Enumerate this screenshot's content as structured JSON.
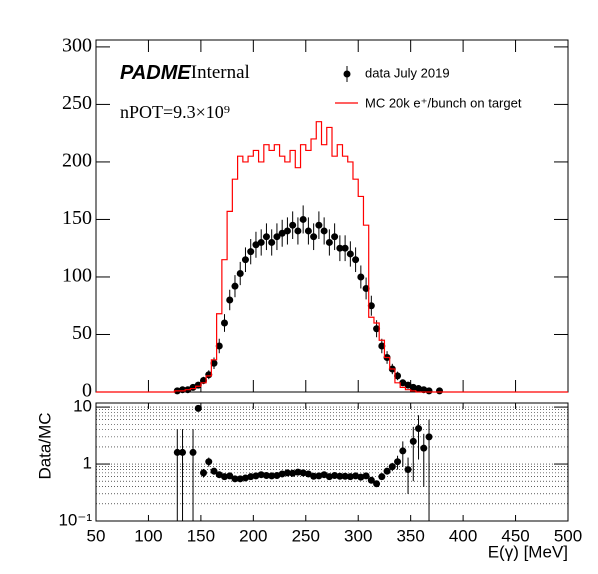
{
  "chart_data": [
    {
      "type": "histogram",
      "label_brand": "PADME",
      "label_status": "Internal",
      "annotation": "nPOT=9.3×10⁹",
      "xlim": [
        50,
        500
      ],
      "ylim": [
        0,
        306
      ],
      "yticks": [
        0,
        50,
        100,
        150,
        200,
        250,
        300
      ],
      "xticks": [
        50,
        100,
        150,
        200,
        250,
        300,
        350,
        400,
        450,
        500
      ],
      "series": [
        {
          "name": "data July 2019",
          "color": "#000000",
          "kind": "points",
          "x": [
            127.5,
            132.5,
            137.5,
            142.5,
            147.5,
            152.5,
            157.5,
            162.5,
            167.5,
            172.5,
            177.5,
            182.5,
            187.5,
            192.5,
            197.5,
            202.5,
            207.5,
            212.5,
            217.5,
            222.5,
            227.5,
            232.5,
            237.5,
            242.5,
            247.5,
            252.5,
            257.5,
            262.5,
            267.5,
            272.5,
            277.5,
            282.5,
            287.5,
            292.5,
            297.5,
            302.5,
            307.5,
            312.5,
            317.5,
            322.5,
            327.5,
            332.5,
            337.5,
            342.5,
            347.5,
            352.5,
            357.5,
            362.5,
            367.5,
            377.5
          ],
          "values": [
            1,
            2,
            2,
            4,
            6,
            10,
            15,
            25,
            40,
            60,
            80,
            92,
            103,
            115,
            122,
            128,
            130,
            135,
            130,
            135,
            138,
            140,
            145,
            140,
            150,
            140,
            135,
            145,
            140,
            130,
            135,
            125,
            125,
            120,
            115,
            100,
            90,
            75,
            55,
            40,
            30,
            20,
            14,
            8,
            6,
            4,
            3,
            2,
            1,
            1
          ],
          "errors": [
            1,
            1.4,
            1.4,
            2,
            2.4,
            3.2,
            3.9,
            5,
            6.3,
            7.7,
            8.9,
            9.6,
            10.1,
            10.7,
            11,
            11.3,
            11.4,
            11.6,
            11.4,
            11.6,
            11.7,
            11.8,
            12,
            11.8,
            12.2,
            11.8,
            11.6,
            12,
            11.8,
            11.4,
            11.6,
            11.2,
            11.2,
            11,
            10.7,
            10,
            9.5,
            8.7,
            7.4,
            6.3,
            5.5,
            4.5,
            3.7,
            2.8,
            2.4,
            2,
            1.7,
            1.4,
            1,
            1
          ]
        },
        {
          "name": "MC 20k e⁺/bunch on target",
          "color": "#ff0000",
          "kind": "step",
          "bins": [
            125,
            130,
            135,
            140,
            145,
            150,
            155,
            160,
            165,
            170,
            175,
            180,
            185,
            190,
            195,
            200,
            205,
            210,
            215,
            220,
            225,
            230,
            235,
            240,
            245,
            250,
            255,
            260,
            265,
            270,
            275,
            280,
            285,
            290,
            295,
            300,
            305,
            310,
            315,
            320,
            325,
            330,
            335,
            340,
            345,
            350,
            355,
            360
          ],
          "values": [
            1,
            1,
            2,
            3,
            5,
            8,
            14,
            28,
            68,
            115,
            157,
            185,
            205,
            200,
            205,
            210,
            200,
            215,
            210,
            215,
            205,
            200,
            210,
            195,
            215,
            210,
            220,
            235,
            215,
            230,
            205,
            215,
            205,
            200,
            185,
            170,
            145,
            65,
            60,
            45,
            30,
            20,
            8,
            4,
            2,
            1,
            0
          ]
        }
      ]
    },
    {
      "type": "scatter",
      "log_y": true,
      "grid": true,
      "y_label": "Data/MC",
      "x_label": "E(γ) [MeV]",
      "xlim": [
        50,
        500
      ],
      "ylim": [
        0.1,
        11.8
      ],
      "xticks": [
        50,
        100,
        150,
        200,
        250,
        300,
        350,
        400,
        450,
        500
      ],
      "yticks": [
        {
          "value": 0.1,
          "label": "10⁻¹"
        },
        1,
        10
      ],
      "yminorticks": [
        0.2,
        0.3,
        0.4,
        0.5,
        0.6,
        0.7,
        0.8,
        0.9,
        2,
        3,
        4,
        5,
        6,
        7,
        8,
        9
      ],
      "color": "#000000",
      "x": [
        127.5,
        132.5,
        142.5,
        147.5,
        152.5,
        157.5,
        162.5,
        167.5,
        172.5,
        177.5,
        182.5,
        187.5,
        192.5,
        197.5,
        202.5,
        207.5,
        212.5,
        217.5,
        222.5,
        227.5,
        232.5,
        237.5,
        242.5,
        247.5,
        252.5,
        257.5,
        262.5,
        267.5,
        272.5,
        277.5,
        282.5,
        287.5,
        292.5,
        297.5,
        302.5,
        307.5,
        312.5,
        317.5,
        322.5,
        327.5,
        332.5,
        337.5,
        342.5,
        347.5,
        352.5,
        357.5,
        362.5,
        367.5
      ],
      "values": [
        1.6,
        1.6,
        1.6,
        9.5,
        0.7,
        1.1,
        0.75,
        0.65,
        0.6,
        0.62,
        0.55,
        0.55,
        0.57,
        0.6,
        0.62,
        0.65,
        0.63,
        0.62,
        0.63,
        0.67,
        0.7,
        0.69,
        0.72,
        0.7,
        0.67,
        0.61,
        0.62,
        0.65,
        0.6,
        0.63,
        0.61,
        0.61,
        0.6,
        0.62,
        0.59,
        0.62,
        0.52,
        0.45,
        0.6,
        0.75,
        0.9,
        1.1,
        1.7,
        0.8,
        2.5,
        4.2,
        1.9,
        3.0
      ],
      "errors": [
        2.5,
        2.5,
        2.5,
        0,
        0.12,
        0.2,
        0.1,
        0.06,
        0.05,
        0.05,
        0.04,
        0.04,
        0.04,
        0.04,
        0.04,
        0.04,
        0.04,
        0.04,
        0.04,
        0.04,
        0.04,
        0.04,
        0.04,
        0.04,
        0.04,
        0.04,
        0.04,
        0.04,
        0.04,
        0.04,
        0.04,
        0.04,
        0.04,
        0.04,
        0.04,
        0.04,
        0.04,
        0.05,
        0.07,
        0.1,
        0.15,
        0.3,
        0.8,
        0.5,
        2,
        3,
        1.5,
        3
      ]
    }
  ]
}
